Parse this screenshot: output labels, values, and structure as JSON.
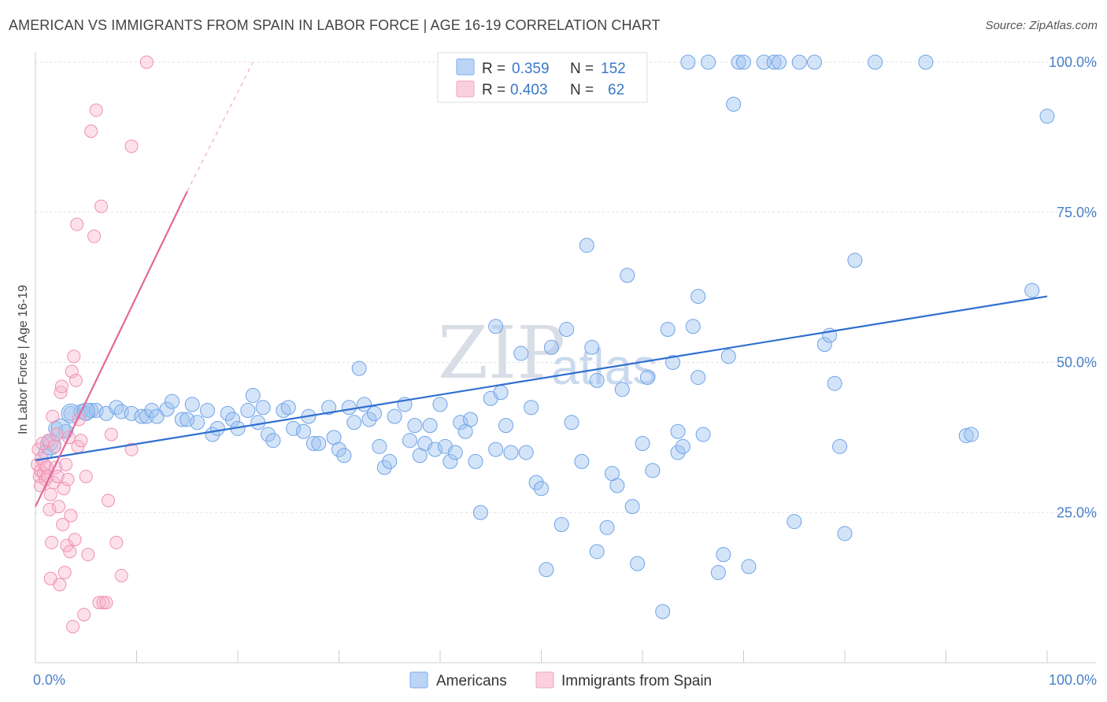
{
  "header": {
    "title": "AMERICAN VS IMMIGRANTS FROM SPAIN IN LABOR FORCE | AGE 16-19 CORRELATION CHART",
    "source": "Source: ZipAtlas.com"
  },
  "watermark": {
    "zip": "ZIP",
    "atlas": "atlas"
  },
  "legend": {
    "rows": [
      {
        "r_label": "R =",
        "r_value": "0.359",
        "n_label": "N =",
        "n_value": "152",
        "color": "#7aaef0"
      },
      {
        "r_label": "R =",
        "r_value": "0.403",
        "n_label": "N =",
        "n_value": "62",
        "color": "#f3a3bf"
      }
    ]
  },
  "bottom_legend": {
    "items": [
      {
        "label": "Americans",
        "color": "#7aaef0"
      },
      {
        "label": "Immigrants from Spain",
        "color": "#f3a3bf"
      }
    ]
  },
  "chart_data": {
    "type": "scatter",
    "title": "AMERICAN VS IMMIGRANTS FROM SPAIN IN LABOR FORCE | AGE 16-19 CORRELATION CHART",
    "xlabel": "",
    "ylabel": "In Labor Force | Age 16-19",
    "xlim": [
      0,
      100
    ],
    "ylim": [
      0,
      100
    ],
    "x_tick_labels": [
      "0.0%",
      "100.0%"
    ],
    "y_ticks": [
      25,
      50,
      75,
      100
    ],
    "y_tick_labels": [
      "25.0%",
      "50.0%",
      "75.0%",
      "100.0%"
    ],
    "grid": true,
    "legend_position": "top-center",
    "series": [
      {
        "name": "Americans",
        "color": "#6fa3e8",
        "trend": {
          "x": [
            0,
            100
          ],
          "y": [
            33.7,
            61.0
          ]
        },
        "points": [
          [
            1.0,
            35.0
          ],
          [
            1.5,
            36.5
          ],
          [
            2.0,
            39.0
          ],
          [
            3.0,
            38.5
          ],
          [
            3.5,
            41.5
          ],
          [
            4.5,
            41.8
          ],
          [
            5.0,
            41.5
          ],
          [
            5.5,
            42.0
          ],
          [
            6.0,
            42.0
          ],
          [
            7.0,
            41.5
          ],
          [
            8.0,
            42.5
          ],
          [
            8.5,
            41.8
          ],
          [
            9.5,
            41.5
          ],
          [
            10.5,
            41.0
          ],
          [
            11.0,
            41.0
          ],
          [
            11.5,
            42.0
          ],
          [
            12.0,
            41.0
          ],
          [
            13.0,
            42.2
          ],
          [
            13.5,
            43.5
          ],
          [
            14.5,
            40.5
          ],
          [
            15.0,
            40.5
          ],
          [
            15.5,
            43.0
          ],
          [
            16.0,
            40.0
          ],
          [
            17.0,
            42.0
          ],
          [
            17.5,
            38.0
          ],
          [
            18.0,
            39.0
          ],
          [
            19.0,
            41.5
          ],
          [
            19.5,
            40.5
          ],
          [
            20.0,
            39.0
          ],
          [
            21.0,
            42.0
          ],
          [
            21.5,
            44.5
          ],
          [
            22.0,
            40.0
          ],
          [
            22.5,
            42.5
          ],
          [
            23.0,
            38.0
          ],
          [
            23.5,
            37.0
          ],
          [
            24.5,
            42.0
          ],
          [
            25.0,
            42.5
          ],
          [
            25.5,
            39.0
          ],
          [
            26.5,
            38.5
          ],
          [
            27.0,
            41.0
          ],
          [
            27.5,
            36.5
          ],
          [
            28.0,
            36.5
          ],
          [
            29.0,
            42.5
          ],
          [
            29.5,
            37.5
          ],
          [
            30.0,
            35.5
          ],
          [
            30.5,
            34.5
          ],
          [
            31.0,
            42.5
          ],
          [
            31.5,
            40.0
          ],
          [
            32.0,
            49.0
          ],
          [
            32.5,
            43.0
          ],
          [
            33.0,
            40.5
          ],
          [
            33.5,
            41.5
          ],
          [
            34.0,
            36.0
          ],
          [
            34.5,
            32.5
          ],
          [
            35.0,
            33.5
          ],
          [
            35.5,
            41.0
          ],
          [
            36.5,
            43.0
          ],
          [
            37.0,
            37.0
          ],
          [
            37.5,
            39.5
          ],
          [
            38.0,
            34.5
          ],
          [
            38.5,
            36.5
          ],
          [
            39.0,
            39.5
          ],
          [
            39.5,
            35.5
          ],
          [
            40.0,
            43.0
          ],
          [
            40.5,
            36.0
          ],
          [
            41.0,
            33.5
          ],
          [
            41.5,
            35.0
          ],
          [
            42.0,
            40.0
          ],
          [
            42.5,
            38.5
          ],
          [
            43.0,
            40.5
          ],
          [
            43.5,
            33.5
          ],
          [
            44.0,
            25.0
          ],
          [
            45.0,
            44.0
          ],
          [
            45.5,
            56.0
          ],
          [
            45.5,
            35.5
          ],
          [
            46.0,
            45.0
          ],
          [
            46.5,
            39.5
          ],
          [
            47.0,
            35.0
          ],
          [
            48.0,
            51.5
          ],
          [
            48.5,
            35.0
          ],
          [
            49.0,
            42.5
          ],
          [
            49.5,
            30.0
          ],
          [
            50.0,
            29.0
          ],
          [
            50.5,
            15.5
          ],
          [
            51.0,
            52.5
          ],
          [
            52.0,
            23.0
          ],
          [
            52.5,
            55.5
          ],
          [
            53.0,
            40.0
          ],
          [
            54.0,
            33.5
          ],
          [
            54.5,
            69.5
          ],
          [
            55.0,
            52.5
          ],
          [
            55.5,
            47.0
          ],
          [
            55.5,
            18.5
          ],
          [
            56.5,
            22.5
          ],
          [
            57.0,
            31.5
          ],
          [
            57.5,
            29.5
          ],
          [
            58.0,
            45.5
          ],
          [
            58.5,
            64.5
          ],
          [
            59.0,
            26.0
          ],
          [
            59.5,
            16.5
          ],
          [
            60.0,
            36.5
          ],
          [
            60.5,
            47.5
          ],
          [
            61.0,
            32.0
          ],
          [
            62.0,
            8.5
          ],
          [
            62.5,
            55.5
          ],
          [
            63.0,
            50.0
          ],
          [
            63.5,
            38.5
          ],
          [
            63.5,
            35.0
          ],
          [
            64.0,
            36.0
          ],
          [
            64.5,
            100.0
          ],
          [
            65.0,
            56.0
          ],
          [
            65.5,
            61.0
          ],
          [
            65.5,
            47.5
          ],
          [
            66.0,
            38.0
          ],
          [
            66.5,
            100.0
          ],
          [
            67.5,
            15.0
          ],
          [
            68.0,
            18.0
          ],
          [
            68.5,
            51.0
          ],
          [
            69.0,
            93.0
          ],
          [
            69.5,
            100.0
          ],
          [
            70.0,
            100.0
          ],
          [
            70.5,
            16.0
          ],
          [
            72.0,
            100.0
          ],
          [
            73.0,
            100.0
          ],
          [
            73.5,
            100.0
          ],
          [
            75.0,
            23.5
          ],
          [
            75.5,
            100.0
          ],
          [
            77.0,
            100.0
          ],
          [
            78.0,
            53.0
          ],
          [
            78.5,
            54.5
          ],
          [
            79.0,
            46.5
          ],
          [
            79.5,
            36.0
          ],
          [
            80.0,
            21.5
          ],
          [
            81.0,
            67.0
          ],
          [
            83.0,
            100.0
          ],
          [
            88.0,
            100.0
          ],
          [
            92.0,
            37.8
          ],
          [
            92.5,
            38.0
          ],
          [
            98.5,
            62.0
          ],
          [
            100.0,
            91.0
          ]
        ]
      },
      {
        "name": "Immigrants from Spain",
        "color": "#f090b0",
        "trend": {
          "x": [
            0,
            15.0
          ],
          "y": [
            26.0,
            78.5
          ]
        },
        "trend_extension": {
          "x": [
            15.0,
            21.5
          ],
          "y": [
            78.5,
            100.0
          ]
        },
        "points": [
          [
            0.2,
            33.0
          ],
          [
            0.3,
            35.5
          ],
          [
            0.4,
            31.0
          ],
          [
            0.5,
            32.0
          ],
          [
            0.5,
            29.5
          ],
          [
            0.6,
            34.0
          ],
          [
            0.7,
            36.5
          ],
          [
            0.8,
            31.5
          ],
          [
            0.9,
            33.0
          ],
          [
            1.0,
            30.5
          ],
          [
            1.1,
            32.5
          ],
          [
            1.2,
            31.0
          ],
          [
            1.3,
            37.0
          ],
          [
            1.4,
            25.5
          ],
          [
            1.5,
            28.0
          ],
          [
            1.5,
            14.0
          ],
          [
            1.6,
            20.0
          ],
          [
            1.7,
            41.0
          ],
          [
            1.8,
            30.0
          ],
          [
            1.9,
            36.0
          ],
          [
            2.0,
            32.5
          ],
          [
            2.1,
            38.0
          ],
          [
            2.2,
            31.0
          ],
          [
            2.3,
            26.0
          ],
          [
            2.4,
            13.0
          ],
          [
            2.5,
            45.0
          ],
          [
            2.6,
            46.0
          ],
          [
            2.7,
            23.0
          ],
          [
            2.8,
            29.0
          ],
          [
            2.9,
            15.0
          ],
          [
            3.0,
            33.0
          ],
          [
            3.1,
            19.5
          ],
          [
            3.2,
            30.5
          ],
          [
            3.3,
            37.5
          ],
          [
            3.4,
            18.5
          ],
          [
            3.5,
            24.5
          ],
          [
            3.6,
            48.5
          ],
          [
            3.7,
            6.0
          ],
          [
            3.8,
            51.0
          ],
          [
            3.9,
            20.5
          ],
          [
            4.0,
            47.0
          ],
          [
            4.1,
            73.0
          ],
          [
            4.2,
            36.0
          ],
          [
            4.3,
            40.5
          ],
          [
            4.5,
            37.0
          ],
          [
            4.8,
            8.0
          ],
          [
            5.0,
            31.0
          ],
          [
            5.2,
            18.0
          ],
          [
            5.5,
            88.5
          ],
          [
            5.8,
            71.0
          ],
          [
            6.0,
            92.0
          ],
          [
            6.3,
            10.0
          ],
          [
            6.5,
            76.0
          ],
          [
            6.7,
            10.0
          ],
          [
            7.0,
            10.0
          ],
          [
            7.2,
            27.0
          ],
          [
            7.5,
            38.0
          ],
          [
            8.0,
            20.0
          ],
          [
            8.5,
            14.5
          ],
          [
            9.5,
            35.5
          ],
          [
            9.5,
            86.0
          ],
          [
            11.0,
            100.0
          ]
        ]
      }
    ]
  }
}
